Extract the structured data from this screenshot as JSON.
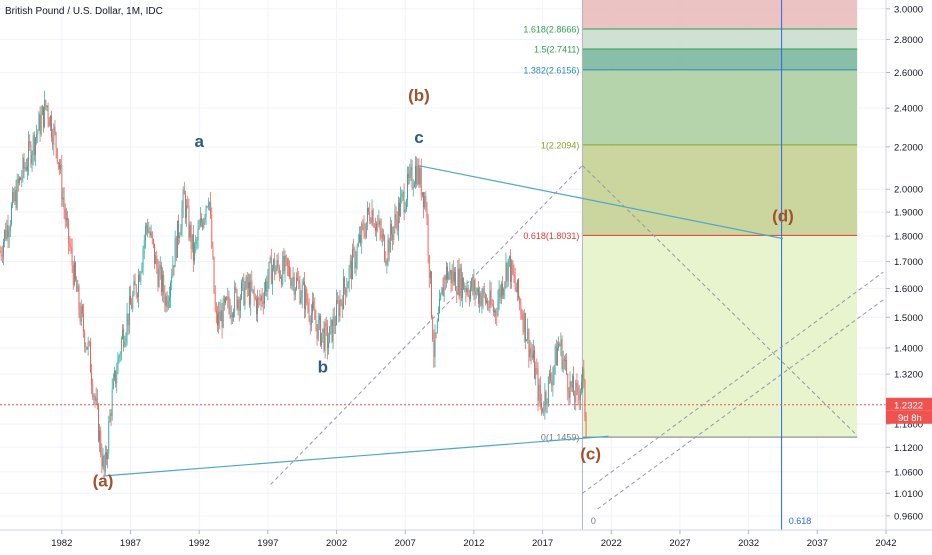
{
  "header": {
    "title": "British Pound / U.S. Dollar, 1M, IDC"
  },
  "chart_data": {
    "type": "candlestick",
    "symbol": "GBPUSD",
    "interval": "1M",
    "source": "IDC",
    "title": "British Pound / U.S. Dollar, 1M, IDC",
    "xlim": [
      1977.5,
      2042
    ],
    "ylim": [
      0.93,
      3.06
    ],
    "y_scale": "log",
    "grid": true,
    "x_ticks": [
      1982,
      1987,
      1992,
      1997,
      2002,
      2007,
      2012,
      2017,
      2022,
      2027,
      2032,
      2037,
      2042
    ],
    "x_tick_labels": [
      "1982",
      "1987",
      "1992",
      "1997",
      "2002",
      "2007",
      "2012",
      "2017",
      "2022",
      "2027",
      "2032",
      "2037",
      "2042"
    ],
    "y_ticks": [
      0.96,
      1.01,
      1.06,
      1.12,
      1.18,
      1.32,
      1.4,
      1.5,
      1.6,
      1.7,
      1.8,
      1.9,
      2.0,
      2.2,
      2.4,
      2.6,
      2.8,
      3.0
    ],
    "y_tick_labels": [
      "0.9600",
      "1.0100",
      "1.0600",
      "1.1200",
      "1.1800",
      "1.3200",
      "1.4000",
      "1.5000",
      "1.6000",
      "1.7000",
      "1.8000",
      "1.9000",
      "2.0000",
      "2.2000",
      "2.4000",
      "2.6000",
      "2.8000",
      "3.0000"
    ],
    "price_anchors": [
      [
        1977.5,
        1.74
      ],
      [
        1979,
        2.05
      ],
      [
        1980.9,
        2.42
      ],
      [
        1981.7,
        2.18
      ],
      [
        1982.3,
        1.85
      ],
      [
        1983.3,
        1.52
      ],
      [
        1984,
        1.38
      ],
      [
        1985.1,
        1.05
      ],
      [
        1985.6,
        1.24
      ],
      [
        1986.4,
        1.44
      ],
      [
        1987.5,
        1.62
      ],
      [
        1988.2,
        1.86
      ],
      [
        1988.9,
        1.68
      ],
      [
        1989.6,
        1.56
      ],
      [
        1990.9,
        1.96
      ],
      [
        1991.6,
        1.72
      ],
      [
        1992.7,
        2.0
      ],
      [
        1993.2,
        1.48
      ],
      [
        1994.5,
        1.56
      ],
      [
        1995.5,
        1.6
      ],
      [
        1996.3,
        1.54
      ],
      [
        1997.3,
        1.68
      ],
      [
        1998.6,
        1.66
      ],
      [
        1999.6,
        1.58
      ],
      [
        2000.7,
        1.46
      ],
      [
        2001.4,
        1.42
      ],
      [
        2002.4,
        1.58
      ],
      [
        2003.6,
        1.76
      ],
      [
        2004.5,
        1.92
      ],
      [
        2005.6,
        1.74
      ],
      [
        2006.6,
        1.92
      ],
      [
        2007.8,
        2.1
      ],
      [
        2008.5,
        1.95
      ],
      [
        2009.1,
        1.38
      ],
      [
        2009.9,
        1.66
      ],
      [
        2011.2,
        1.62
      ],
      [
        2012.5,
        1.58
      ],
      [
        2013.5,
        1.52
      ],
      [
        2014.5,
        1.7
      ],
      [
        2015.5,
        1.52
      ],
      [
        2016.5,
        1.32
      ],
      [
        2016.9,
        1.22
      ],
      [
        2017.8,
        1.34
      ],
      [
        2018.2,
        1.42
      ],
      [
        2019.0,
        1.28
      ],
      [
        2019.5,
        1.25
      ],
      [
        2019.9,
        1.32
      ],
      [
        2020.2,
        1.16
      ]
    ],
    "last_price": {
      "value": 1.2322,
      "label": "1.2322",
      "countdown": "9d 8h"
    },
    "wave_labels": [
      {
        "text": "(a)",
        "x": 1985.0,
        "y": 1.025,
        "color": "#a0522d"
      },
      {
        "text": "a",
        "x": 1992.0,
        "y": 2.2,
        "color": "#2e5a87"
      },
      {
        "text": "b",
        "x": 2001.0,
        "y": 1.325,
        "color": "#2e5a87"
      },
      {
        "text": "(b)",
        "x": 2008.0,
        "y": 2.44,
        "color": "#a0522d"
      },
      {
        "text": "c",
        "x": 2008.0,
        "y": 2.22,
        "color": "#2e5a87"
      },
      {
        "text": "(c)",
        "x": 2020.5,
        "y": 1.09,
        "color": "#a0522d"
      },
      {
        "text": "(d)",
        "x": 2034.5,
        "y": 1.86,
        "color": "#a0522d"
      }
    ],
    "fib_extension": {
      "x_start": 2019.9,
      "x_end": 2039.9,
      "levels": [
        {
          "ratio_label": "0(1.1459)",
          "value": 1.1459,
          "color": "#787b86"
        },
        {
          "ratio_label": "0.618(1.8031)",
          "value": 1.8031,
          "color": "#e53935"
        },
        {
          "ratio_label": "1(2.2094)",
          "value": 2.2094,
          "color": "#8ba32b"
        },
        {
          "ratio_label": "1.382(2.6156)",
          "value": 2.6156,
          "color": "#2a8ab8"
        },
        {
          "ratio_label": "1.5(2.7411)",
          "value": 2.7411,
          "color": "#2e9e53"
        },
        {
          "ratio_label": "1.618(2.8666)",
          "value": 2.8666,
          "color": "#2e9e53"
        }
      ]
    },
    "fib_time": {
      "labels": [
        {
          "text": "0",
          "x": 2020.3
        },
        {
          "text": "0.618",
          "x": 2034.7
        }
      ],
      "vertical_x": 2034.4
    },
    "trend_lines": [
      {
        "from": [
          1985.0,
          1.05
        ],
        "to": [
          2021.8,
          1.148
        ],
        "color": "#53a7c5"
      },
      {
        "from": [
          2007.9,
          2.11
        ],
        "to": [
          2034.5,
          1.79
        ],
        "color": "#53a7c5"
      }
    ],
    "dashed_lines": [
      {
        "from": [
          1997.2,
          1.03
        ],
        "to": [
          2019.9,
          2.11
        ]
      },
      {
        "from": [
          2019.9,
          2.11
        ],
        "to": [
          2039.9,
          1.15
        ]
      },
      {
        "from": [
          2019.9,
          1.01
        ],
        "to": [
          2041.8,
          1.66
        ]
      },
      {
        "from": [
          2021.0,
          0.975
        ],
        "to": [
          2041.8,
          1.56
        ]
      }
    ]
  }
}
